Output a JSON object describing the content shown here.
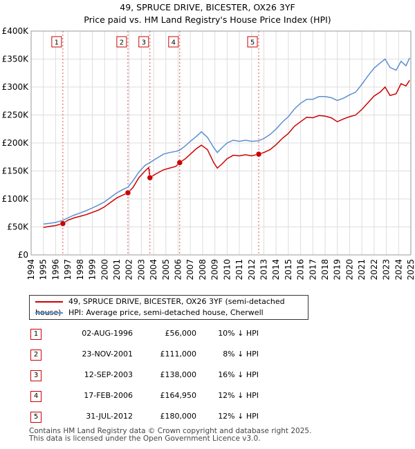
{
  "title_line1": "49, SPRUCE DRIVE, BICESTER, OX26 3YF",
  "title_line2": "Price paid vs. HM Land Registry's House Price Index (HPI)",
  "colors": {
    "property": "#cc0000",
    "hpi": "#5b8fd0",
    "marker_box": "#cc0000",
    "grid": "#dddddd",
    "future_shade": "#eeeeee"
  },
  "chart_data": {
    "type": "line",
    "ylim": [
      0,
      400000
    ],
    "xlim": [
      1995,
      2025
    ],
    "yticks": [
      0,
      50000,
      100000,
      150000,
      200000,
      250000,
      300000,
      350000,
      400000
    ],
    "ytick_labels": [
      "£0",
      "£50K",
      "£100K",
      "£150K",
      "£200K",
      "£250K",
      "£300K",
      "£350K",
      "£400K"
    ],
    "xticks": [
      1994,
      1995,
      1996,
      1997,
      1998,
      1999,
      2000,
      2001,
      2002,
      2003,
      2004,
      2005,
      2006,
      2007,
      2008,
      2009,
      2010,
      2011,
      2012,
      2013,
      2014,
      2015,
      2016,
      2017,
      2018,
      2019,
      2020,
      2021,
      2022,
      2023,
      2024,
      2025
    ],
    "xtick_labels": [
      "1994",
      "1995",
      "1996",
      "1997",
      "1998",
      "1999",
      "2000",
      "2001",
      "2002",
      "2003",
      "2004",
      "2005",
      "2006",
      "2007",
      "2008",
      "2009",
      "2010",
      "2011",
      "2012",
      "2013",
      "2014",
      "2015",
      "2016",
      "2017",
      "2018",
      "2019",
      "2020",
      "2021",
      "2022",
      "2023",
      "2024",
      "2025"
    ],
    "series": [
      {
        "name": "49, SPRUCE DRIVE, BICESTER, OX26 3YF (semi-detached house)",
        "points": [
          [
            1995.0,
            49000
          ],
          [
            1995.5,
            51000
          ],
          [
            1996.0,
            52500
          ],
          [
            1996.59,
            56000
          ],
          [
            1997.0,
            62000
          ],
          [
            1997.5,
            66000
          ],
          [
            1998.0,
            69000
          ],
          [
            1998.5,
            72000
          ],
          [
            1999.0,
            76000
          ],
          [
            1999.5,
            80000
          ],
          [
            2000.0,
            86000
          ],
          [
            2000.5,
            94000
          ],
          [
            2001.0,
            102000
          ],
          [
            2001.5,
            107000
          ],
          [
            2001.9,
            111000
          ],
          [
            2002.3,
            120000
          ],
          [
            2002.8,
            138000
          ],
          [
            2003.3,
            150000
          ],
          [
            2003.6,
            156000
          ],
          [
            2003.7,
            138000
          ],
          [
            2004.2,
            145000
          ],
          [
            2004.8,
            152000
          ],
          [
            2005.3,
            155000
          ],
          [
            2005.8,
            158000
          ],
          [
            2006.13,
            164950
          ],
          [
            2006.6,
            172000
          ],
          [
            2007.0,
            180000
          ],
          [
            2007.5,
            190000
          ],
          [
            2007.9,
            196000
          ],
          [
            2008.4,
            188000
          ],
          [
            2008.9,
            165000
          ],
          [
            2009.2,
            155000
          ],
          [
            2009.6,
            163000
          ],
          [
            2010.0,
            172000
          ],
          [
            2010.5,
            178000
          ],
          [
            2011.0,
            177000
          ],
          [
            2011.5,
            179000
          ],
          [
            2012.0,
            177000
          ],
          [
            2012.58,
            180000
          ],
          [
            2013.0,
            183000
          ],
          [
            2013.5,
            188000
          ],
          [
            2014.0,
            197000
          ],
          [
            2014.5,
            208000
          ],
          [
            2015.0,
            217000
          ],
          [
            2015.5,
            230000
          ],
          [
            2016.0,
            238000
          ],
          [
            2016.5,
            246000
          ],
          [
            2017.0,
            245000
          ],
          [
            2017.5,
            249000
          ],
          [
            2018.0,
            248000
          ],
          [
            2018.5,
            245000
          ],
          [
            2019.0,
            238000
          ],
          [
            2019.5,
            243000
          ],
          [
            2020.0,
            247000
          ],
          [
            2020.5,
            250000
          ],
          [
            2021.0,
            260000
          ],
          [
            2021.5,
            272000
          ],
          [
            2022.0,
            284000
          ],
          [
            2022.5,
            291000
          ],
          [
            2022.9,
            300000
          ],
          [
            2023.3,
            285000
          ],
          [
            2023.8,
            288000
          ],
          [
            2024.2,
            306000
          ],
          [
            2024.6,
            302000
          ],
          [
            2024.9,
            312000
          ]
        ]
      },
      {
        "name": "HPI: Average price, semi-detached house, Cherwell",
        "points": [
          [
            1995.0,
            55000
          ],
          [
            1995.5,
            56500
          ],
          [
            1996.0,
            58000
          ],
          [
            1996.59,
            62000
          ],
          [
            1997.0,
            66000
          ],
          [
            1997.5,
            71000
          ],
          [
            1998.0,
            75000
          ],
          [
            1998.5,
            79000
          ],
          [
            1999.0,
            84000
          ],
          [
            1999.5,
            89000
          ],
          [
            2000.0,
            95000
          ],
          [
            2000.5,
            103000
          ],
          [
            2001.0,
            111000
          ],
          [
            2001.5,
            117000
          ],
          [
            2001.9,
            121000
          ],
          [
            2002.3,
            132000
          ],
          [
            2002.8,
            148000
          ],
          [
            2003.3,
            160000
          ],
          [
            2003.7,
            165000
          ],
          [
            2004.2,
            172000
          ],
          [
            2004.8,
            180000
          ],
          [
            2005.3,
            183000
          ],
          [
            2005.8,
            185000
          ],
          [
            2006.13,
            187000
          ],
          [
            2006.6,
            195000
          ],
          [
            2007.0,
            203000
          ],
          [
            2007.5,
            212000
          ],
          [
            2007.9,
            220000
          ],
          [
            2008.4,
            210000
          ],
          [
            2008.9,
            192000
          ],
          [
            2009.2,
            183000
          ],
          [
            2009.6,
            192000
          ],
          [
            2010.0,
            200000
          ],
          [
            2010.5,
            205000
          ],
          [
            2011.0,
            203000
          ],
          [
            2011.5,
            205000
          ],
          [
            2012.0,
            203000
          ],
          [
            2012.58,
            204000
          ],
          [
            2013.0,
            208000
          ],
          [
            2013.5,
            215000
          ],
          [
            2014.0,
            225000
          ],
          [
            2014.5,
            237000
          ],
          [
            2015.0,
            247000
          ],
          [
            2015.5,
            261000
          ],
          [
            2016.0,
            271000
          ],
          [
            2016.5,
            278000
          ],
          [
            2017.0,
            278000
          ],
          [
            2017.5,
            283000
          ],
          [
            2018.0,
            283000
          ],
          [
            2018.5,
            281000
          ],
          [
            2019.0,
            276000
          ],
          [
            2019.5,
            280000
          ],
          [
            2020.0,
            286000
          ],
          [
            2020.5,
            291000
          ],
          [
            2021.0,
            305000
          ],
          [
            2021.5,
            320000
          ],
          [
            2022.0,
            334000
          ],
          [
            2022.5,
            343000
          ],
          [
            2022.9,
            350000
          ],
          [
            2023.3,
            335000
          ],
          [
            2023.8,
            330000
          ],
          [
            2024.2,
            346000
          ],
          [
            2024.6,
            338000
          ],
          [
            2024.9,
            352000
          ]
        ]
      }
    ],
    "sales": [
      {
        "n": "1",
        "x": 1996.59,
        "y": 56000
      },
      {
        "n": "2",
        "x": 2001.9,
        "y": 111000
      },
      {
        "n": "3",
        "x": 2003.7,
        "y": 138000
      },
      {
        "n": "4",
        "x": 2006.13,
        "y": 164950
      },
      {
        "n": "5",
        "x": 2012.58,
        "y": 180000
      }
    ]
  },
  "legend": {
    "property_label": "49, SPRUCE DRIVE, BICESTER, OX26 3YF (semi-detached house)",
    "hpi_label": "HPI: Average price, semi-detached house, Cherwell"
  },
  "transactions": [
    {
      "n": "1",
      "date": "02-AUG-1996",
      "price": "£56,000",
      "hpi": "10% ↓ HPI"
    },
    {
      "n": "2",
      "date": "23-NOV-2001",
      "price": "£111,000",
      "hpi": "8% ↓ HPI"
    },
    {
      "n": "3",
      "date": "12-SEP-2003",
      "price": "£138,000",
      "hpi": "16% ↓ HPI"
    },
    {
      "n": "4",
      "date": "17-FEB-2006",
      "price": "£164,950",
      "hpi": "12% ↓ HPI"
    },
    {
      "n": "5",
      "date": "31-JUL-2012",
      "price": "£180,000",
      "hpi": "12% ↓ HPI"
    }
  ],
  "footer_line1": "Contains HM Land Registry data © Crown copyright and database right 2025.",
  "footer_line2": "This data is licensed under the Open Government Licence v3.0."
}
